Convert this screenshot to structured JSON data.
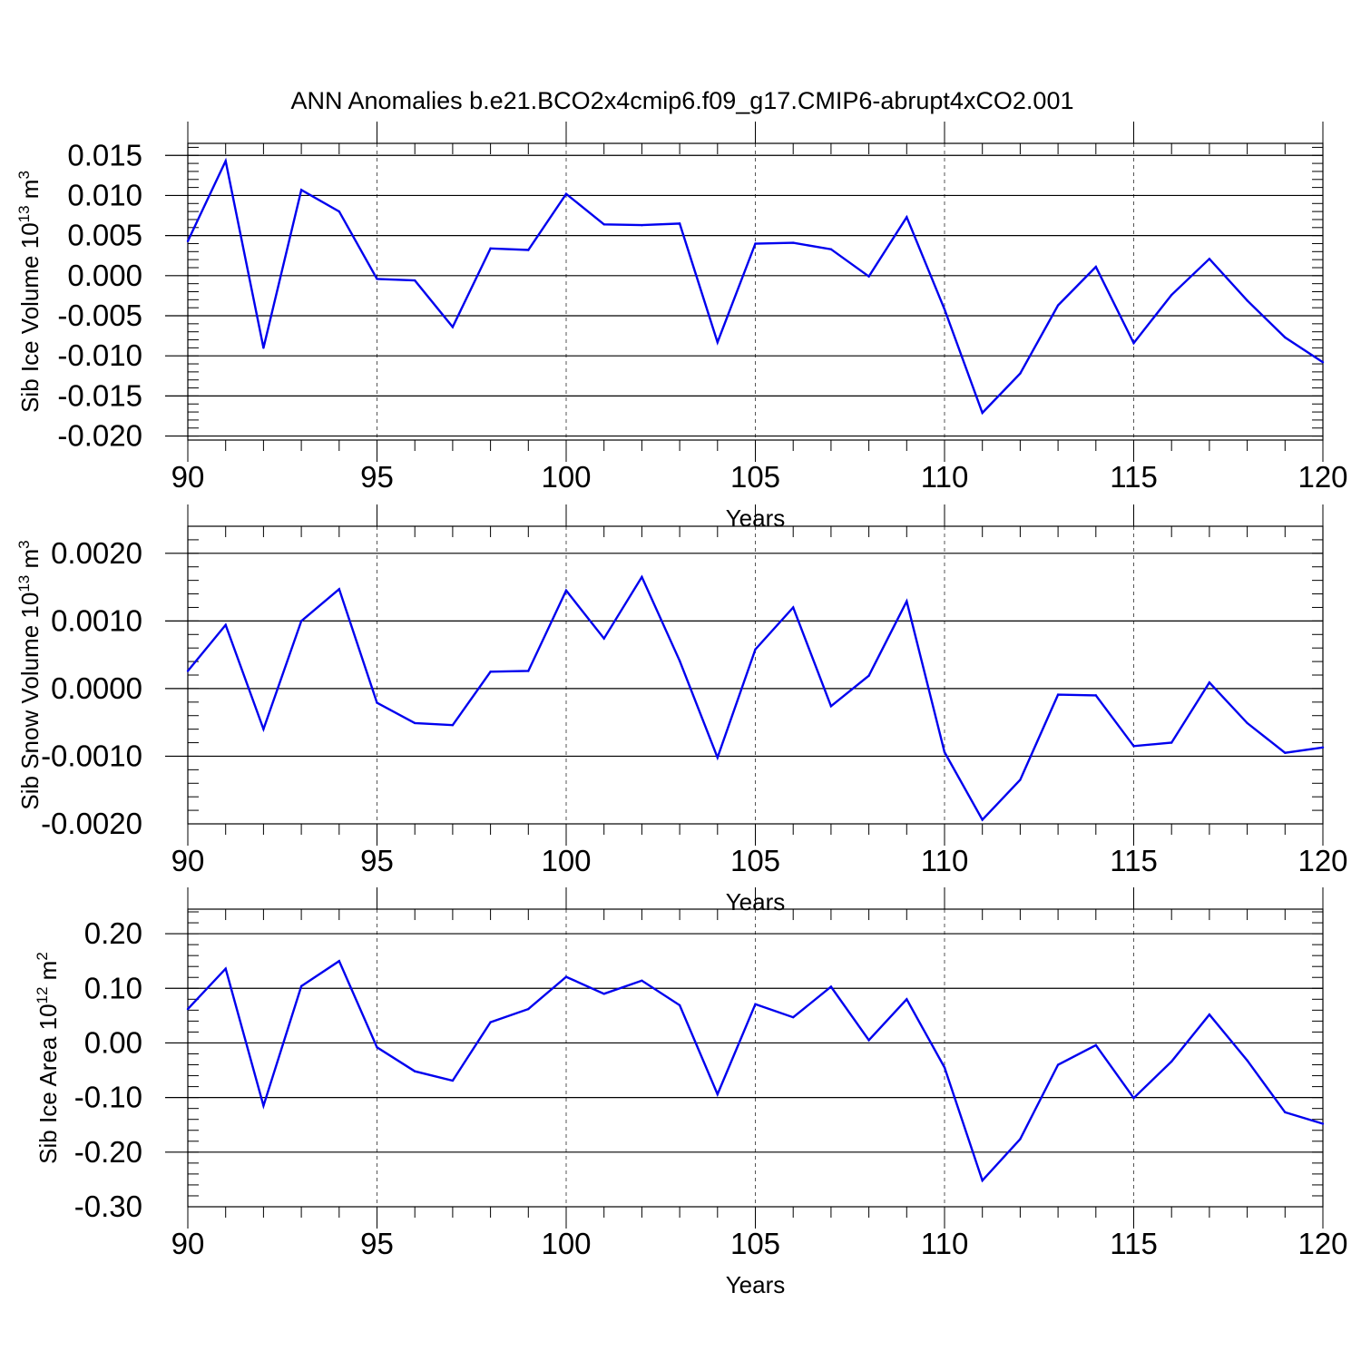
{
  "title": "ANN Anomalies b.e21.BCO2x4cmip6.f09_g17.CMIP6-abrupt4xCO2.001",
  "colors": {
    "series": "#0000ee",
    "axis": "#000000",
    "grid": "#555555"
  },
  "chart_data": [
    {
      "type": "line",
      "name": "sib-ice-volume",
      "ylabel_main": "Sib Ice Volume 10",
      "ylabel_exp": "13",
      "ylabel_unit": "m",
      "ylabel_unit_exp": "3",
      "xlabel": "Years",
      "xlim": [
        90,
        120
      ],
      "ylim": [
        -0.0205,
        0.0165
      ],
      "yticks": [
        0.015,
        0.01,
        0.005,
        0.0,
        -0.005,
        -0.01,
        -0.015,
        -0.02
      ],
      "ytick_labels": [
        "0.015",
        "0.010",
        "0.005",
        "0.000",
        "-0.005",
        "-0.010",
        "-0.015",
        "-0.020"
      ],
      "xticks": [
        90,
        95,
        100,
        105,
        110,
        115,
        120
      ],
      "xtick_labels": [
        "90",
        "95",
        "100",
        "105",
        "110",
        "115",
        "120"
      ],
      "grid_x": [
        95,
        100,
        105,
        110,
        115
      ],
      "x": [
        90,
        91,
        92,
        93,
        94,
        95,
        96,
        97,
        98,
        99,
        100,
        101,
        102,
        103,
        104,
        105,
        106,
        107,
        108,
        109,
        110,
        111,
        112,
        113,
        114,
        115,
        116,
        117,
        118,
        119,
        120
      ],
      "values": [
        0.0043,
        0.0143,
        -0.009,
        0.0107,
        0.008,
        -0.0004,
        -0.0006,
        -0.0064,
        0.0034,
        0.0032,
        0.0102,
        0.0064,
        0.0063,
        0.0065,
        -0.0083,
        0.004,
        0.0041,
        0.0033,
        -0.0001,
        0.0073,
        -0.0042,
        -0.0171,
        -0.0122,
        -0.0037,
        0.0011,
        -0.0084,
        -0.0024,
        0.0021,
        -0.0031,
        -0.0077,
        -0.0108
      ]
    },
    {
      "type": "line",
      "name": "sib-snow-volume",
      "ylabel_main": "Sib Snow Volume 10",
      "ylabel_exp": "13",
      "ylabel_unit": "m",
      "ylabel_unit_exp": "3",
      "xlabel": "Years",
      "xlim": [
        90,
        120
      ],
      "ylim": [
        -0.002,
        0.0024
      ],
      "yticks": [
        0.002,
        0.001,
        0.0,
        -0.001,
        -0.002
      ],
      "ytick_labels": [
        "0.0020",
        "0.0010",
        "0.0000",
        "-0.0010",
        "-0.0020"
      ],
      "xticks": [
        90,
        95,
        100,
        105,
        110,
        115,
        120
      ],
      "xtick_labels": [
        "90",
        "95",
        "100",
        "105",
        "110",
        "115",
        "120"
      ],
      "grid_x": [
        95,
        100,
        105,
        110,
        115
      ],
      "x": [
        90,
        91,
        92,
        93,
        94,
        95,
        96,
        97,
        98,
        99,
        100,
        101,
        102,
        103,
        104,
        105,
        106,
        107,
        108,
        109,
        110,
        111,
        112,
        113,
        114,
        115,
        116,
        117,
        118,
        119,
        120
      ],
      "values": [
        0.00026,
        0.00094,
        -0.0006,
        0.001,
        0.00147,
        -0.00021,
        -0.00051,
        -0.00054,
        0.00025,
        0.00026,
        0.00145,
        0.00074,
        0.00165,
        0.00041,
        -0.00102,
        0.00058,
        0.0012,
        -0.00026,
        0.00019,
        0.00129,
        -0.00094,
        -0.00194,
        -0.00135,
        -9e-05,
        -0.0001,
        -0.00085,
        -0.0008,
        9e-05,
        -0.00051,
        -0.00095,
        -0.00087
      ]
    },
    {
      "type": "line",
      "name": "sib-ice-area",
      "ylabel_main": "Sib Ice Area 10",
      "ylabel_exp": "12",
      "ylabel_unit": "m",
      "ylabel_unit_exp": "2",
      "xlabel": "Years",
      "xlim": [
        90,
        120
      ],
      "ylim": [
        -0.3,
        0.245
      ],
      "yticks": [
        0.2,
        0.1,
        0.0,
        -0.1,
        -0.2,
        -0.3
      ],
      "ytick_labels": [
        "0.20",
        "0.10",
        "0.00",
        "-0.10",
        "-0.20",
        "-0.30"
      ],
      "xticks": [
        90,
        95,
        100,
        105,
        110,
        115,
        120
      ],
      "xtick_labels": [
        "90",
        "95",
        "100",
        "105",
        "110",
        "115",
        "120"
      ],
      "grid_x": [
        95,
        100,
        105,
        110,
        115
      ],
      "x": [
        90,
        91,
        92,
        93,
        94,
        95,
        96,
        97,
        98,
        99,
        100,
        101,
        102,
        103,
        104,
        105,
        106,
        107,
        108,
        109,
        110,
        111,
        112,
        113,
        114,
        115,
        116,
        117,
        118,
        119,
        120
      ],
      "values": [
        0.062,
        0.136,
        -0.115,
        0.104,
        0.15,
        -0.008,
        -0.052,
        -0.069,
        0.038,
        0.062,
        0.121,
        0.09,
        0.114,
        0.069,
        -0.094,
        0.071,
        0.047,
        0.103,
        0.005,
        0.08,
        -0.045,
        -0.252,
        -0.176,
        -0.04,
        -0.004,
        -0.101,
        -0.034,
        0.052,
        -0.032,
        -0.127,
        -0.148
      ]
    }
  ]
}
